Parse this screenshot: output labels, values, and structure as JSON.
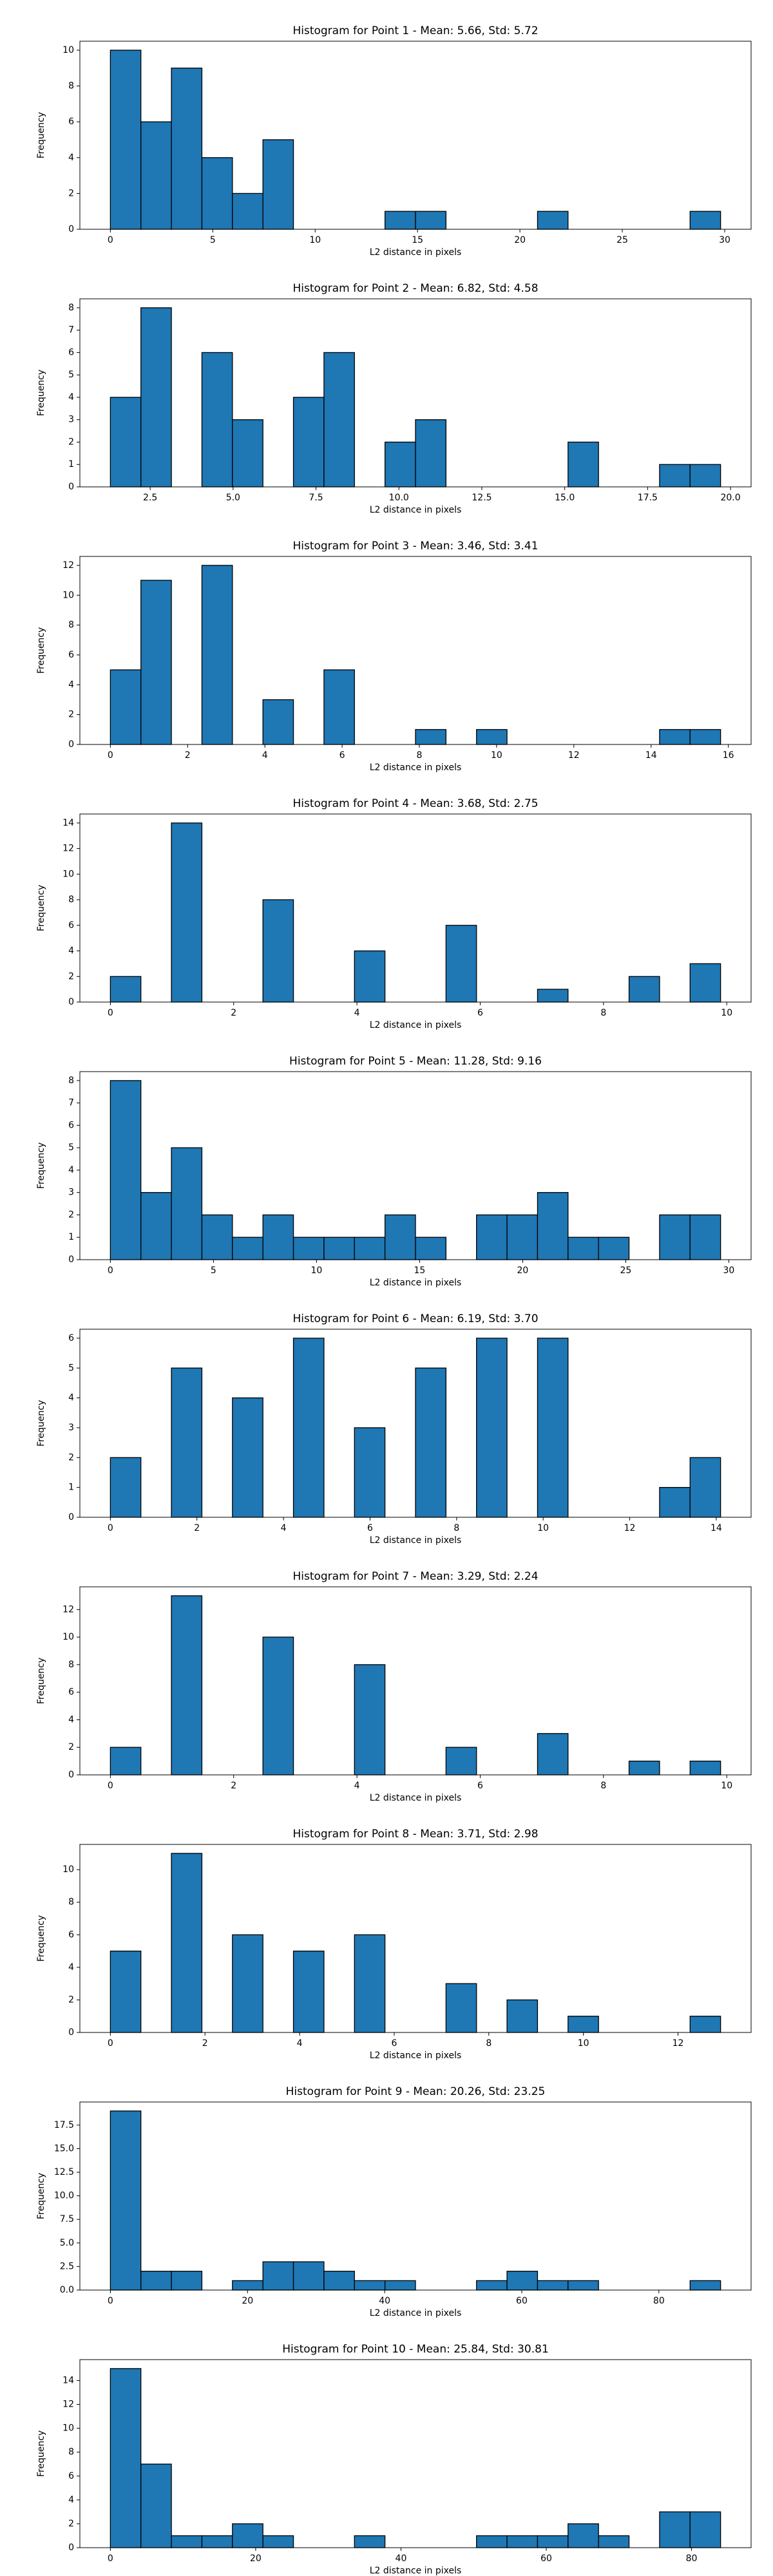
{
  "chart_data": [
    {
      "type": "histogram",
      "title": "Histogram for Point 1 - Mean: 5.66, Std: 5.72",
      "x_label": "L2 distance in pixels",
      "y_label": "Frequency",
      "color": "#1f77b4",
      "edgecolor": "#000000",
      "bins": [
        0,
        1.49,
        2.98,
        4.47,
        5.96,
        7.45,
        8.94,
        10.43,
        11.92,
        13.41,
        14.9,
        16.39,
        17.88,
        19.37,
        20.86,
        22.35,
        23.84,
        25.33,
        26.82,
        28.31,
        29.8
      ],
      "values": [
        10,
        6,
        9,
        4,
        2,
        5,
        0,
        0,
        0,
        1,
        1,
        0,
        0,
        0,
        1,
        0,
        0,
        0,
        0,
        1
      ],
      "xlim": [
        -1.49,
        31.29
      ],
      "ylim": [
        0,
        10.5
      ],
      "xticks": [
        0,
        5,
        10,
        15,
        20,
        25,
        30
      ],
      "yticks": [
        0,
        2,
        4,
        6,
        8,
        10
      ]
    },
    {
      "type": "histogram",
      "title": "Histogram for Point 2 - Mean: 6.82, Std: 4.58",
      "x_label": "L2 distance in pixels",
      "y_label": "Frequency",
      "color": "#1f77b4",
      "edgecolor": "#000000",
      "bins": [
        1.3,
        2.22,
        3.14,
        4.06,
        4.98,
        5.9,
        6.82,
        7.74,
        8.66,
        9.58,
        10.5,
        11.42,
        12.34,
        13.26,
        14.18,
        15.1,
        16.02,
        16.94,
        17.86,
        18.78,
        19.7
      ],
      "values": [
        4,
        8,
        0,
        6,
        3,
        0,
        4,
        6,
        0,
        2,
        3,
        0,
        0,
        0,
        0,
        2,
        0,
        0,
        1,
        1
      ],
      "xlim": [
        0.38,
        20.62
      ],
      "ylim": [
        0,
        8.4
      ],
      "xticks": [
        2.5,
        {
          "value": 5,
          "label": "5.0"
        },
        7.5,
        {
          "value": 10,
          "label": "10.0"
        },
        12.5,
        {
          "value": 15,
          "label": "15.0"
        },
        17.5,
        {
          "value": 20,
          "label": "20.0"
        }
      ],
      "yticks": [
        0,
        1,
        2,
        3,
        4,
        5,
        6,
        7,
        8
      ]
    },
    {
      "type": "histogram",
      "title": "Histogram for Point 3 - Mean: 3.46, Std: 3.41",
      "x_label": "L2 distance in pixels",
      "y_label": "Frequency",
      "color": "#1f77b4",
      "edgecolor": "#000000",
      "bins": [
        0,
        0.79,
        1.58,
        2.37,
        3.16,
        3.95,
        4.74,
        5.53,
        6.32,
        7.11,
        7.9,
        8.69,
        9.48,
        10.27,
        11.06,
        11.85,
        12.64,
        13.43,
        14.22,
        15.01,
        15.8
      ],
      "values": [
        5,
        11,
        0,
        12,
        0,
        3,
        0,
        5,
        0,
        0,
        1,
        0,
        1,
        0,
        0,
        0,
        0,
        0,
        1,
        1
      ],
      "xlim": [
        -0.79,
        16.59
      ],
      "ylim": [
        0,
        12.6
      ],
      "xticks": [
        0,
        2,
        4,
        6,
        8,
        10,
        12,
        14,
        16
      ],
      "yticks": [
        0,
        2,
        4,
        6,
        8,
        10,
        12
      ]
    },
    {
      "type": "histogram",
      "title": "Histogram for Point 4 - Mean: 3.68, Std: 2.75",
      "x_label": "L2 distance in pixels",
      "y_label": "Frequency",
      "color": "#1f77b4",
      "edgecolor": "#000000",
      "bins": [
        0,
        0.495,
        0.99,
        1.485,
        1.98,
        2.475,
        2.97,
        3.465,
        3.96,
        4.455,
        4.95,
        5.445,
        5.94,
        6.435,
        6.93,
        7.425,
        7.92,
        8.415,
        8.91,
        9.405,
        9.9
      ],
      "values": [
        2,
        0,
        14,
        0,
        0,
        8,
        0,
        0,
        4,
        0,
        0,
        6,
        0,
        0,
        1,
        0,
        0,
        2,
        0,
        3
      ],
      "xlim": [
        -0.495,
        10.395
      ],
      "ylim": [
        0,
        14.7
      ],
      "xticks": [
        0,
        2,
        4,
        6,
        8,
        10
      ],
      "yticks": [
        0,
        2,
        4,
        6,
        8,
        10,
        12,
        14
      ]
    },
    {
      "type": "histogram",
      "title": "Histogram for Point 5 - Mean: 11.28, Std: 9.16",
      "x_label": "L2 distance in pixels",
      "y_label": "Frequency",
      "color": "#1f77b4",
      "edgecolor": "#000000",
      "bins": [
        0,
        1.48,
        2.96,
        4.44,
        5.92,
        7.4,
        8.88,
        10.36,
        11.84,
        13.32,
        14.8,
        16.28,
        17.76,
        19.24,
        20.72,
        22.2,
        23.68,
        25.16,
        26.64,
        28.12,
        29.6
      ],
      "values": [
        8,
        3,
        5,
        2,
        1,
        2,
        1,
        1,
        1,
        2,
        1,
        0,
        2,
        2,
        3,
        1,
        1,
        0,
        2,
        2
      ],
      "xlim": [
        -1.48,
        31.08
      ],
      "ylim": [
        0,
        8.4
      ],
      "xticks": [
        0,
        5,
        10,
        15,
        20,
        25,
        30
      ],
      "yticks": [
        0,
        1,
        2,
        3,
        4,
        5,
        6,
        7,
        8
      ]
    },
    {
      "type": "histogram",
      "title": "Histogram for Point 6 - Mean: 6.19, Std: 3.70",
      "x_label": "L2 distance in pixels",
      "y_label": "Frequency",
      "color": "#1f77b4",
      "edgecolor": "#000000",
      "bins": [
        0,
        0.705,
        1.41,
        2.115,
        2.82,
        3.525,
        4.23,
        4.935,
        5.64,
        6.345,
        7.05,
        7.755,
        8.46,
        9.165,
        9.87,
        10.575,
        11.28,
        11.985,
        12.69,
        13.395,
        14.1
      ],
      "values": [
        2,
        0,
        5,
        0,
        4,
        0,
        6,
        0,
        3,
        0,
        5,
        0,
        6,
        0,
        6,
        0,
        0,
        0,
        1,
        2
      ],
      "xlim": [
        -0.705,
        14.805
      ],
      "ylim": [
        0,
        6.3
      ],
      "xticks": [
        0,
        2,
        4,
        6,
        8,
        10,
        12,
        14
      ],
      "yticks": [
        0,
        1,
        2,
        3,
        4,
        5,
        6
      ]
    },
    {
      "type": "histogram",
      "title": "Histogram for Point 7 - Mean: 3.29, Std: 2.24",
      "x_label": "L2 distance in pixels",
      "y_label": "Frequency",
      "color": "#1f77b4",
      "edgecolor": "#000000",
      "bins": [
        0,
        0.495,
        0.99,
        1.485,
        1.98,
        2.475,
        2.97,
        3.465,
        3.96,
        4.455,
        4.95,
        5.445,
        5.94,
        6.435,
        6.93,
        7.425,
        7.92,
        8.415,
        8.91,
        9.405,
        9.9
      ],
      "values": [
        2,
        0,
        13,
        0,
        0,
        10,
        0,
        0,
        8,
        0,
        0,
        2,
        0,
        0,
        3,
        0,
        0,
        1,
        0,
        1
      ],
      "xlim": [
        -0.495,
        10.395
      ],
      "ylim": [
        0,
        13.65
      ],
      "xticks": [
        0,
        2,
        4,
        6,
        8,
        10
      ],
      "yticks": [
        0,
        2,
        4,
        6,
        8,
        10,
        12
      ]
    },
    {
      "type": "histogram",
      "title": "Histogram for Point 8 - Mean: 3.71, Std: 2.98",
      "x_label": "L2 distance in pixels",
      "y_label": "Frequency",
      "color": "#1f77b4",
      "edgecolor": "#000000",
      "bins": [
        0,
        0.645,
        1.29,
        1.935,
        2.58,
        3.225,
        3.87,
        4.515,
        5.16,
        5.805,
        6.45,
        7.095,
        7.74,
        8.385,
        9.03,
        9.675,
        10.32,
        10.965,
        11.61,
        12.255,
        12.9
      ],
      "values": [
        5,
        0,
        11,
        0,
        6,
        0,
        5,
        0,
        6,
        0,
        0,
        3,
        0,
        2,
        0,
        1,
        0,
        0,
        0,
        1
      ],
      "xlim": [
        -0.645,
        13.545
      ],
      "ylim": [
        0,
        11.55
      ],
      "xticks": [
        0,
        2,
        4,
        6,
        8,
        10,
        12
      ],
      "yticks": [
        0,
        2,
        4,
        6,
        8,
        10
      ]
    },
    {
      "type": "histogram",
      "title": "Histogram for Point 9 - Mean: 20.26, Std: 23.25",
      "x_label": "L2 distance in pixels",
      "y_label": "Frequency",
      "color": "#1f77b4",
      "edgecolor": "#000000",
      "bins": [
        0,
        4.45,
        8.9,
        13.35,
        17.8,
        22.25,
        26.7,
        31.15,
        35.6,
        40.05,
        44.5,
        48.95,
        53.4,
        57.85,
        62.3,
        66.75,
        71.2,
        75.65,
        80.1,
        84.55,
        89
      ],
      "values": [
        19,
        2,
        2,
        0,
        1,
        3,
        3,
        2,
        1,
        1,
        0,
        0,
        1,
        2,
        1,
        1,
        0,
        0,
        0,
        1
      ],
      "xlim": [
        -4.45,
        93.45
      ],
      "ylim": [
        0,
        19.95
      ],
      "xticks": [
        0,
        20,
        40,
        60,
        80
      ],
      "yticks": [
        {
          "value": 0,
          "label": "0.0"
        },
        2.5,
        {
          "value": 5,
          "label": "5.0"
        },
        7.5,
        {
          "value": 10,
          "label": "10.0"
        },
        12.5,
        {
          "value": 15,
          "label": "15.0"
        },
        17.5
      ]
    },
    {
      "type": "histogram",
      "title": "Histogram for Point 10 - Mean: 25.84, Std: 30.81",
      "x_label": "L2 distance in pixels",
      "y_label": "Frequency",
      "color": "#1f77b4",
      "edgecolor": "#000000",
      "bins": [
        0,
        4.2,
        8.4,
        12.6,
        16.8,
        21,
        25.2,
        29.4,
        33.6,
        37.8,
        42,
        46.2,
        50.4,
        54.6,
        58.8,
        63,
        67.2,
        71.4,
        75.6,
        79.8,
        84
      ],
      "values": [
        15,
        7,
        1,
        1,
        2,
        1,
        0,
        0,
        1,
        0,
        0,
        0,
        1,
        1,
        1,
        2,
        1,
        0,
        3,
        3
      ],
      "xlim": [
        -4.2,
        88.2
      ],
      "ylim": [
        0,
        15.75
      ],
      "xticks": [
        0,
        20,
        40,
        60,
        80
      ],
      "yticks": [
        0,
        2,
        4,
        6,
        8,
        10,
        12,
        14
      ]
    }
  ]
}
